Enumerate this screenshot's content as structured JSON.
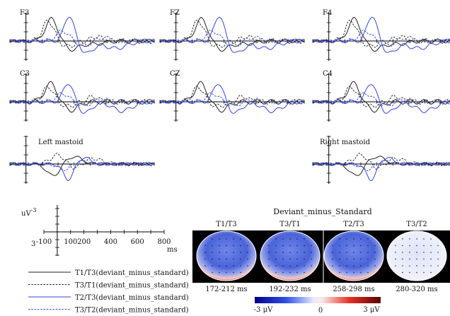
{
  "chart_data": {
    "type": "line",
    "panels": [
      {
        "label": "F3",
        "profile": "frontal"
      },
      {
        "label": "FZ",
        "profile": "frontal"
      },
      {
        "label": "F4",
        "profile": "frontal"
      },
      {
        "label": "C3",
        "profile": "central"
      },
      {
        "label": "CZ",
        "profile": "central"
      },
      {
        "label": "C4",
        "profile": "central"
      },
      {
        "label": "Left mastoid",
        "profile": "mastoid"
      },
      {
        "label": "Right mastoid",
        "profile": "mastoid"
      }
    ],
    "axis": {
      "ylabel_prefix": "uV",
      "ylabel_exp": "-3",
      "ytick_bottom": "3",
      "xticks": [
        -100,
        100,
        200,
        400,
        600,
        800
      ],
      "xunit": "ms",
      "xlim": [
        -100,
        800
      ],
      "ylim": [
        -3,
        3
      ]
    },
    "series": [
      {
        "name": "T1/T3(deviant_minus_standard)",
        "color": "#222222",
        "dash": "solid"
      },
      {
        "name": "T3/T1(deviant_minus_standard)",
        "color": "#222222",
        "dash": "dashed"
      },
      {
        "name": "T2/T3(deviant_minus_standard)",
        "color": "#3344dd",
        "dash": "solid"
      },
      {
        "name": "T3/T2(deviant_minus_standard)",
        "color": "#3344dd",
        "dash": "dashed"
      }
    ],
    "topomaps": {
      "title": "Deviant_minus_Standard",
      "maps": [
        {
          "label": "T1/T3",
          "window": "172-212 ms"
        },
        {
          "label": "T3/T1",
          "window": "192-232 ms"
        },
        {
          "label": "T2/T3",
          "window": "258-298 ms"
        },
        {
          "label": "T3/T2",
          "window": "280-320 ms"
        }
      ],
      "colorbar": {
        "min_label": "-3 μV",
        "mid_label": "0",
        "max_label": "3 μV"
      }
    }
  }
}
